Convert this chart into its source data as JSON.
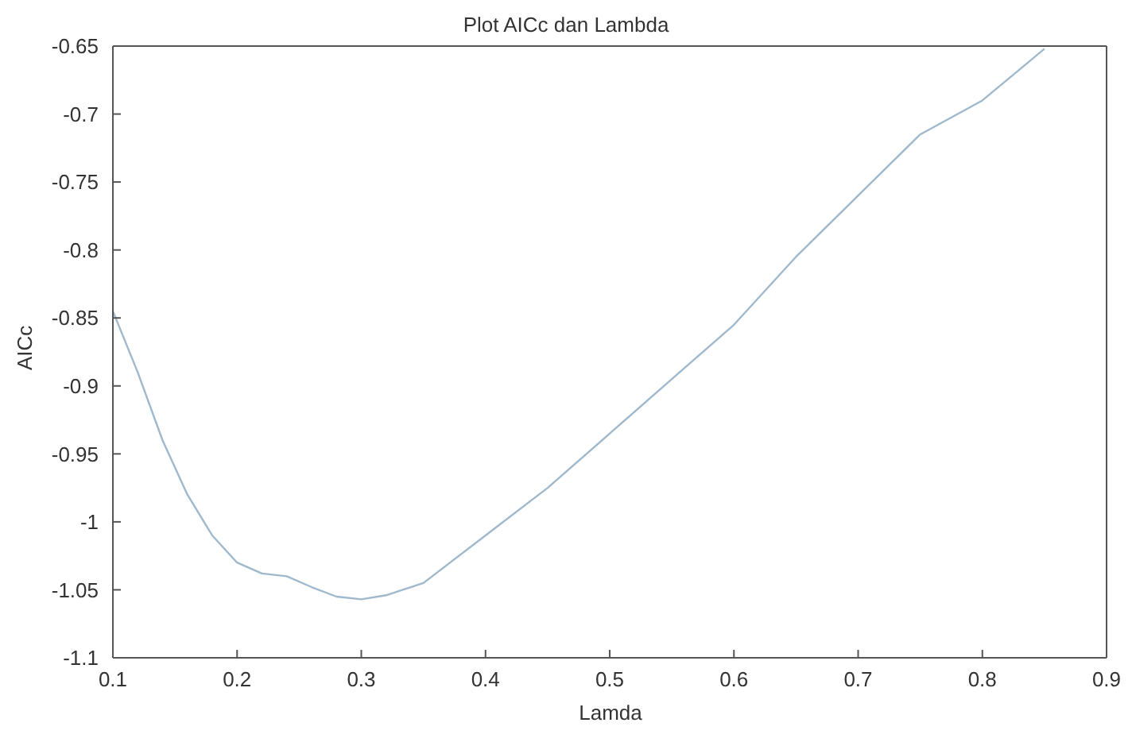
{
  "chart_data": {
    "type": "line",
    "title": "Plot AICc dan Lambda",
    "xlabel": "Lamda",
    "ylabel": "AICc",
    "x": [
      0.1,
      0.12,
      0.14,
      0.16,
      0.18,
      0.2,
      0.22,
      0.24,
      0.26,
      0.28,
      0.3,
      0.32,
      0.35,
      0.4,
      0.45,
      0.5,
      0.55,
      0.6,
      0.65,
      0.7,
      0.75,
      0.8,
      0.85
    ],
    "series": [
      {
        "color": "#9fb8cc",
        "values": [
          -0.845,
          -0.89,
          -0.94,
          -0.98,
          -1.01,
          -1.03,
          -1.038,
          -1.04,
          -1.048,
          -1.055,
          -1.057,
          -1.054,
          -1.045,
          -1.01,
          -0.975,
          -0.935,
          -0.895,
          -0.855,
          -0.805,
          -0.76,
          -0.715,
          -0.69,
          -0.652
        ]
      }
    ],
    "xlim": [
      0.1,
      0.9
    ],
    "xticks": [
      0.1,
      0.2,
      0.3,
      0.4,
      0.5,
      0.6,
      0.7,
      0.8,
      0.9
    ],
    "ylim": [
      -1.1,
      -0.65
    ],
    "yticks": [
      -1.1,
      -1.05,
      -1,
      -0.95,
      -0.9,
      -0.85,
      -0.8,
      -0.75,
      -0.7,
      -0.65
    ],
    "grid": false,
    "legend": false,
    "marker": "none",
    "line_style": "solid"
  }
}
